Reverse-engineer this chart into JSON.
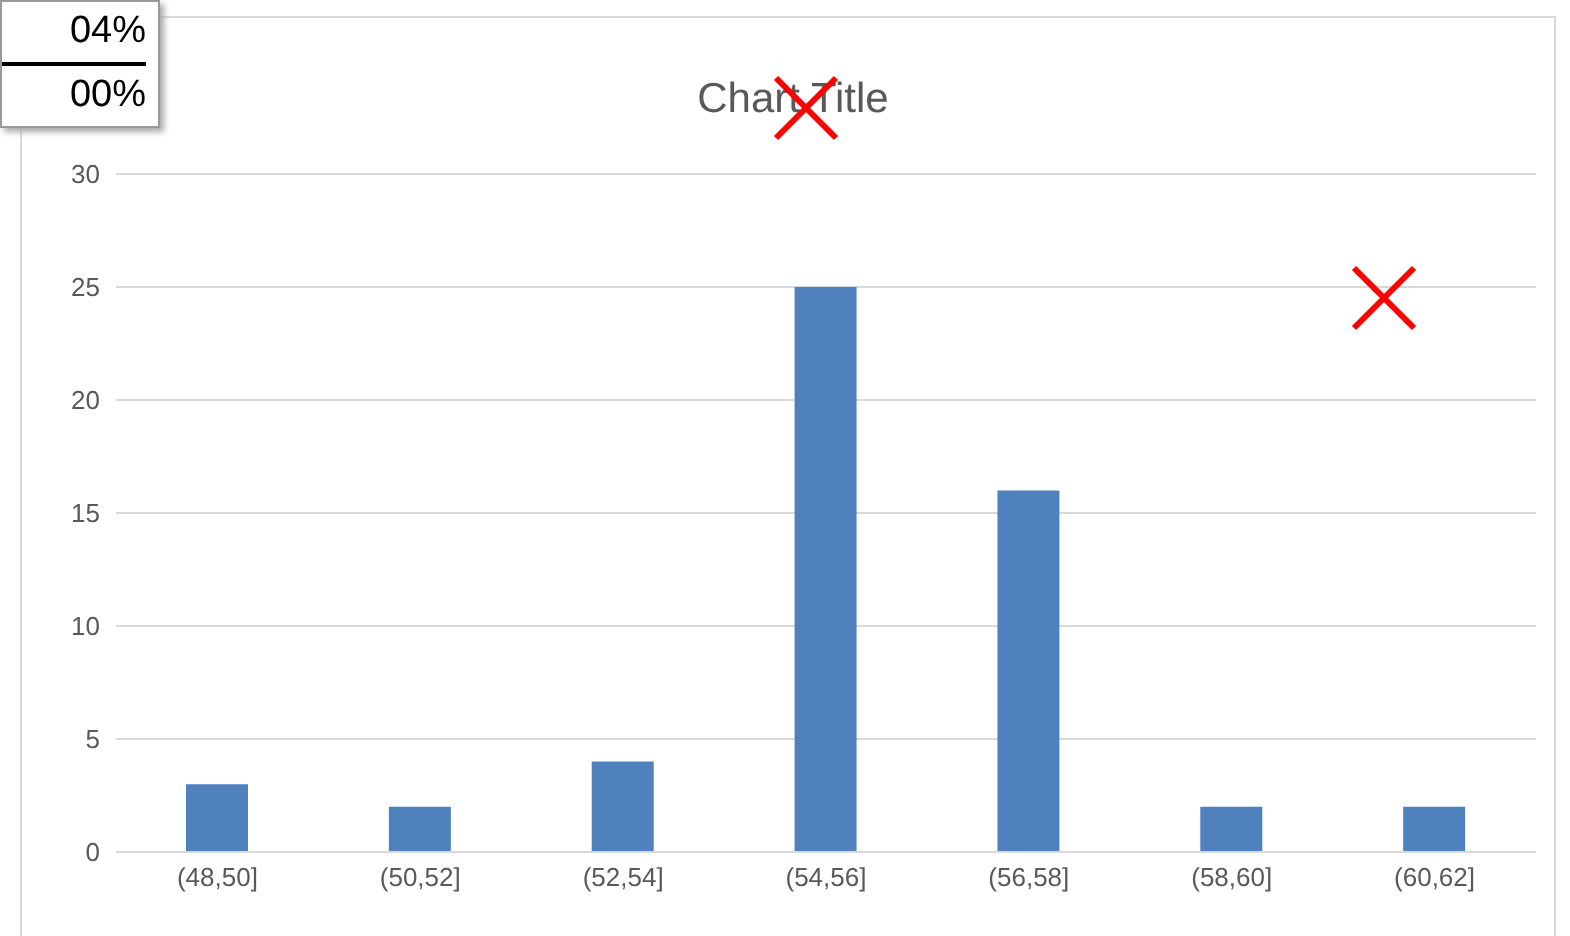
{
  "chart_data": {
    "type": "bar",
    "title": "Chart Title",
    "categories": [
      "(48,50]",
      "(50,52]",
      "(52,54]",
      "(54,56]",
      "(56,58]",
      "(58,60]",
      "(60,62]"
    ],
    "values": [
      3,
      2,
      4,
      25,
      16,
      2,
      2
    ],
    "color": "#4f81bd",
    "ylim": [
      0,
      30
    ],
    "yticks": [
      0,
      5,
      10,
      15,
      20,
      25,
      30
    ],
    "grid": "y",
    "annotations": [
      "04%",
      "00%"
    ]
  }
}
